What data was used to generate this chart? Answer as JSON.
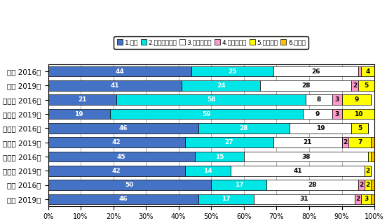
{
  "categories": [
    "全国 2016年",
    "全国 2019年",
    "北海道 2016年",
    "北海道 2019年",
    "東日本 2016年",
    "東日本 2019年",
    "西日本 2016年",
    "西日本 2019年",
    "九州 2016年",
    "九州 2019年"
  ],
  "series": [
    {
      "name": "1.粒剤",
      "color": "#4472C4",
      "text": "white",
      "values": [
        44,
        41,
        21,
        19,
        46,
        42,
        45,
        42,
        50,
        46
      ]
    },
    {
      "name": "2.フロアブル剤",
      "color": "#00E5E5",
      "text": "white",
      "values": [
        25,
        24,
        58,
        59,
        28,
        27,
        15,
        14,
        17,
        17
      ]
    },
    {
      "name": "3.ジャンボ剤",
      "color": "#FFFFFF",
      "text": "black",
      "values": [
        26,
        28,
        8,
        9,
        19,
        21,
        38,
        41,
        28,
        31
      ]
    },
    {
      "name": "4.顆粒水和剤",
      "color": "#FF99CC",
      "text": "black",
      "values": [
        1,
        2,
        3,
        3,
        0,
        2,
        0,
        0,
        2,
        2
      ]
    },
    {
      "name": "5.豆つぶ剤",
      "color": "#FFFF00",
      "text": "black",
      "values": [
        4,
        5,
        9,
        10,
        5,
        7,
        1,
        2,
        2,
        3
      ]
    },
    {
      "name": "6.その他",
      "color": "#FFC000",
      "text": "black",
      "values": [
        1,
        1,
        0,
        0,
        0,
        1,
        1,
        0,
        1,
        1
      ]
    }
  ],
  "legend_labels": [
    "1.粒剤",
    "2.フロアブル剤",
    "3.ジャンボ剤",
    "4.顆粒水和剤",
    "5.豆つぶ剤",
    "6.その他"
  ],
  "legend_colors": [
    "#4472C4",
    "#00E5E5",
    "#FFFFFF",
    "#FF99CC",
    "#FFFF00",
    "#FFC000"
  ],
  "xlabel_ticks": [
    "0%",
    "10%",
    "20%",
    "30%",
    "40%",
    "50%",
    "60%",
    "70%",
    "80%",
    "90%",
    "100%"
  ],
  "bar_edge_color": "#000000",
  "background_color": "#FFFFFF"
}
